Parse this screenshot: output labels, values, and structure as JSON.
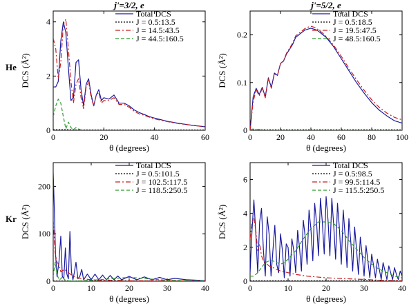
{
  "row_labels": [
    "He",
    "Kr"
  ],
  "chart_data": [
    {
      "type": "line",
      "title": "j'=3/2, e",
      "xlabel": "θ (degrees)",
      "ylabel": "DCS (Å²)",
      "xlim": [
        0,
        60
      ],
      "ylim": [
        0,
        4.4
      ],
      "xticks": [
        0,
        20,
        40,
        60
      ],
      "yticks": [
        0,
        2,
        4
      ],
      "legend_position": "top-right",
      "series": [
        {
          "name": "Total DCS",
          "color": "#1a1aa0",
          "dash": "",
          "x": [
            0,
            1,
            2,
            3,
            4,
            5,
            6,
            7,
            8,
            9,
            10,
            11,
            12,
            13,
            14,
            15,
            16,
            17,
            18,
            19,
            20,
            22,
            24,
            26,
            28,
            30,
            32,
            34,
            36,
            38,
            40,
            45,
            50,
            55,
            60
          ],
          "y": [
            1.6,
            1.6,
            1.8,
            3.3,
            4.0,
            3.6,
            2.3,
            1.1,
            1.2,
            2.5,
            2.6,
            1.5,
            0.9,
            1.7,
            1.9,
            1.3,
            0.9,
            1.3,
            1.5,
            1.1,
            1.2,
            1.15,
            1.3,
            1.0,
            1.0,
            0.9,
            0.75,
            0.65,
            0.58,
            0.5,
            0.45,
            0.33,
            0.25,
            0.18,
            0.13
          ]
        },
        {
          "name": "J = 0.5:13.5",
          "color": "#000000",
          "dash": "2,2",
          "x": [
            0,
            5,
            10,
            20,
            30,
            40,
            50,
            60
          ],
          "y": [
            0.02,
            0.02,
            0.01,
            0.01,
            0.01,
            0.01,
            0.01,
            0.01
          ]
        },
        {
          "name": "J = 14.5:43.5",
          "color": "#c81e1e",
          "dash": "7,3,2,3",
          "x": [
            0,
            1,
            2,
            3,
            4,
            5,
            6,
            7,
            8,
            9,
            10,
            11,
            12,
            13,
            14,
            15,
            16,
            17,
            18,
            19,
            20,
            22,
            24,
            26,
            28,
            30,
            32,
            34,
            36,
            38,
            40,
            45,
            50,
            55,
            60
          ],
          "y": [
            3.4,
            3.0,
            1.9,
            2.5,
            3.9,
            4.1,
            3.0,
            1.8,
            1.0,
            1.7,
            1.9,
            1.2,
            0.8,
            1.6,
            1.8,
            1.2,
            0.9,
            1.3,
            1.4,
            1.0,
            1.1,
            1.1,
            1.2,
            0.95,
            0.95,
            0.85,
            0.7,
            0.6,
            0.55,
            0.48,
            0.42,
            0.32,
            0.24,
            0.18,
            0.13
          ]
        },
        {
          "name": "J = 44.5:160.5",
          "color": "#2e9a2e",
          "dash": "5,3",
          "x": [
            0,
            1,
            2,
            3,
            4,
            5,
            6,
            7,
            8,
            9,
            10,
            11,
            12
          ],
          "y": [
            0.5,
            0.9,
            1.15,
            1.0,
            0.5,
            0.05,
            0.3,
            0.1,
            0.02,
            0.1,
            0.05,
            0.01,
            0.0
          ]
        }
      ]
    },
    {
      "type": "line",
      "title": "j'=5/2, e",
      "xlabel": "θ (degrees)",
      "ylabel": "DCS (Å²)",
      "xlim": [
        0,
        100
      ],
      "ylim": [
        0,
        0.25
      ],
      "xticks": [
        0,
        20,
        40,
        60,
        80,
        100
      ],
      "yticks": [
        0,
        0.1,
        0.2
      ],
      "legend_position": "top-right",
      "series": [
        {
          "name": "Total DCS",
          "color": "#1a1aa0",
          "dash": "",
          "x": [
            0,
            2,
            4,
            6,
            8,
            10,
            12,
            14,
            16,
            18,
            20,
            22,
            24,
            26,
            28,
            30,
            32,
            34,
            36,
            38,
            40,
            42,
            44,
            46,
            48,
            50,
            55,
            60,
            65,
            70,
            75,
            80,
            85,
            90,
            95,
            100
          ],
          "y": [
            0.0,
            0.07,
            0.088,
            0.075,
            0.09,
            0.07,
            0.11,
            0.09,
            0.12,
            0.115,
            0.14,
            0.145,
            0.16,
            0.17,
            0.18,
            0.195,
            0.2,
            0.205,
            0.21,
            0.212,
            0.214,
            0.212,
            0.21,
            0.205,
            0.2,
            0.195,
            0.175,
            0.15,
            0.125,
            0.1,
            0.078,
            0.058,
            0.042,
            0.03,
            0.02,
            0.015
          ]
        },
        {
          "name": "J = 0.5:18.5",
          "color": "#000000",
          "dash": "2,2",
          "x": [
            0,
            20,
            40,
            60,
            80,
            100
          ],
          "y": [
            0.001,
            0.001,
            0.001,
            0.001,
            0.001,
            0.001
          ]
        },
        {
          "name": "J = 19.5:47.5",
          "color": "#c81e1e",
          "dash": "7,3,2,3",
          "x": [
            0,
            2,
            4,
            6,
            8,
            10,
            12,
            14,
            16,
            18,
            20,
            22,
            24,
            26,
            28,
            30,
            32,
            34,
            36,
            38,
            40,
            42,
            44,
            46,
            48,
            50,
            55,
            60,
            65,
            70,
            75,
            80,
            85,
            90,
            95,
            100
          ],
          "y": [
            0.0,
            0.06,
            0.085,
            0.072,
            0.088,
            0.068,
            0.108,
            0.088,
            0.118,
            0.115,
            0.14,
            0.146,
            0.162,
            0.172,
            0.183,
            0.198,
            0.203,
            0.208,
            0.213,
            0.216,
            0.218,
            0.216,
            0.213,
            0.208,
            0.203,
            0.197,
            0.178,
            0.155,
            0.13,
            0.106,
            0.084,
            0.064,
            0.048,
            0.036,
            0.027,
            0.022
          ]
        },
        {
          "name": "J = 48.5:160.5",
          "color": "#2e9a2e",
          "dash": "5,3",
          "x": [
            0,
            2,
            4,
            6,
            8,
            10,
            20,
            40,
            60,
            80,
            100
          ],
          "y": [
            0.0,
            0.003,
            0.001,
            0.002,
            0.001,
            0.0,
            0.0,
            0.0,
            0.0,
            0.0,
            0.0
          ]
        }
      ]
    },
    {
      "type": "line",
      "title": "",
      "xlabel": "θ (degrees)",
      "ylabel": "DCS (Å²)",
      "xlim": [
        0,
        40
      ],
      "ylim": [
        0,
        250
      ],
      "xticks": [
        0,
        10,
        20,
        30,
        40
      ],
      "yticks": [
        0,
        100,
        200
      ],
      "legend_position": "top-right",
      "series": [
        {
          "name": "Total DCS",
          "color": "#1a1aa0",
          "dash": "",
          "x": [
            0,
            0.3,
            0.6,
            1,
            1.5,
            2,
            2.4,
            2.8,
            3.2,
            3.6,
            4,
            4.4,
            4.8,
            5.2,
            5.6,
            6,
            6.5,
            7,
            7.5,
            8,
            9,
            10,
            11,
            12,
            13,
            14,
            15,
            16,
            17,
            18,
            20,
            22,
            24,
            26,
            28,
            30,
            32,
            35,
            38,
            40
          ],
          "y": [
            230,
            150,
            60,
            10,
            40,
            95,
            10,
            5,
            70,
            15,
            5,
            105,
            20,
            3,
            20,
            40,
            5,
            10,
            25,
            3,
            15,
            3,
            15,
            3,
            13,
            3,
            12,
            3,
            11,
            3,
            10,
            3,
            9,
            3,
            8,
            3,
            6,
            3,
            2,
            1
          ]
        },
        {
          "name": "J = 0.5:101.5",
          "color": "#000000",
          "dash": "2,2",
          "x": [
            0,
            10,
            20,
            30,
            40
          ],
          "y": [
            0.5,
            0.5,
            0.5,
            0.5,
            0.5
          ]
        },
        {
          "name": "J = 102.5:117.5",
          "color": "#c81e1e",
          "dash": "7,3,2,3",
          "x": [
            0,
            0.5,
            1,
            1.5,
            2,
            3,
            4,
            5,
            6,
            7,
            8,
            10,
            12,
            15,
            20,
            25,
            30,
            40
          ],
          "y": [
            130,
            60,
            40,
            35,
            20,
            25,
            18,
            12,
            8,
            6,
            5,
            3,
            2,
            2,
            1,
            1,
            1,
            0.5
          ]
        },
        {
          "name": "J = 118.5:250.5",
          "color": "#2e9a2e",
          "dash": "5,3",
          "x": [
            0,
            0.5,
            1,
            1.5,
            2,
            2.5,
            3,
            4,
            5,
            6,
            8,
            10,
            12,
            15,
            18,
            20,
            22,
            25,
            28,
            30,
            35,
            40
          ],
          "y": [
            10,
            40,
            15,
            3,
            5,
            10,
            3,
            1,
            0.5,
            0.5,
            1,
            2,
            3,
            5,
            7,
            8,
            7,
            5,
            3,
            2,
            1,
            0.5
          ]
        }
      ]
    },
    {
      "type": "line",
      "title": "",
      "xlabel": "θ (degrees)",
      "ylabel": "DCS (Å²)",
      "xlim": [
        0,
        40
      ],
      "ylim": [
        0,
        7
      ],
      "xticks": [
        0,
        10,
        20,
        30,
        40
      ],
      "yticks": [
        0,
        2,
        4,
        6
      ],
      "legend_position": "top-right",
      "series": [
        {
          "name": "Total DCS",
          "color": "#1a1aa0",
          "dash": "",
          "x": [
            0,
            0.5,
            1,
            1.5,
            2,
            2.5,
            3,
            3.5,
            4,
            4.5,
            5,
            5.5,
            6,
            6.5,
            7,
            7.5,
            8,
            8.5,
            9,
            9.5,
            10,
            10.5,
            11,
            11.5,
            12,
            12.5,
            13,
            13.5,
            14,
            14.5,
            15,
            15.5,
            16,
            16.5,
            17,
            17.5,
            18,
            18.5,
            19,
            19.5,
            20,
            20.5,
            21,
            21.5,
            22,
            22.5,
            23,
            23.5,
            24,
            24.5,
            25,
            25.5,
            26,
            26.5,
            27,
            27.5,
            28,
            28.5,
            29,
            29.5,
            30,
            30.5,
            31,
            31.5,
            32,
            32.5,
            33,
            33.5,
            34,
            34.5,
            35,
            35.5,
            36,
            36.5,
            37,
            37.5,
            38,
            38.5,
            39,
            39.5,
            40
          ],
          "y": [
            0.5,
            3.0,
            4.8,
            2.8,
            0.5,
            3.5,
            4.3,
            1.8,
            0.3,
            3.8,
            2.8,
            0.3,
            1.8,
            3.3,
            1.0,
            0.5,
            2.8,
            1.8,
            0.2,
            2.2,
            2.0,
            0.3,
            2.5,
            1.8,
            0.5,
            3.0,
            2.0,
            0.6,
            3.6,
            2.6,
            1.0,
            4.2,
            3.1,
            1.2,
            4.6,
            3.4,
            1.5,
            4.9,
            3.5,
            1.6,
            5.0,
            3.6,
            1.5,
            4.9,
            3.3,
            1.3,
            4.6,
            3.1,
            1.0,
            4.2,
            2.7,
            0.8,
            3.7,
            2.3,
            0.6,
            3.2,
            1.9,
            0.4,
            2.6,
            1.5,
            0.3,
            2.1,
            1.2,
            0.2,
            1.6,
            0.9,
            0.2,
            1.3,
            0.7,
            0.1,
            1.1,
            0.6,
            0.1,
            0.9,
            0.5,
            0.1,
            0.8,
            0.4,
            0.1,
            0.6,
            0.3
          ]
        },
        {
          "name": "J = 0.5:98.5",
          "color": "#000000",
          "dash": "2,2",
          "x": [
            0,
            10,
            20,
            30,
            40
          ],
          "y": [
            0.02,
            0.02,
            0.02,
            0.02,
            0.02
          ]
        },
        {
          "name": "J = 99.5:114.5",
          "color": "#c81e1e",
          "dash": "7,3,2,3",
          "x": [
            0,
            0.5,
            1,
            1.5,
            2,
            2.5,
            3,
            3.5,
            4,
            5,
            6,
            7,
            8,
            10,
            12,
            15,
            20,
            25,
            30,
            35,
            40
          ],
          "y": [
            2.5,
            3.5,
            3.7,
            3.0,
            1.8,
            2.2,
            1.5,
            1.2,
            1.1,
            0.9,
            0.8,
            0.7,
            0.6,
            0.5,
            0.4,
            0.3,
            0.2,
            0.15,
            0.1,
            0.05,
            0.03
          ]
        },
        {
          "name": "J = 115.5:250.5",
          "color": "#2e9a2e",
          "dash": "5,3",
          "x": [
            0,
            1,
            2,
            3,
            4,
            5,
            6,
            7,
            8,
            9,
            10,
            12,
            14,
            16,
            18,
            20,
            22,
            24,
            26,
            28,
            30,
            32,
            34,
            36,
            38,
            40
          ],
          "y": [
            0.3,
            0.3,
            0.5,
            0.8,
            1.1,
            1.2,
            1.2,
            1.1,
            1.0,
            1.1,
            1.3,
            1.8,
            2.5,
            3.1,
            3.5,
            3.5,
            3.4,
            3.0,
            2.4,
            1.9,
            1.4,
            1.0,
            0.7,
            0.5,
            0.3,
            0.2
          ]
        }
      ]
    }
  ]
}
